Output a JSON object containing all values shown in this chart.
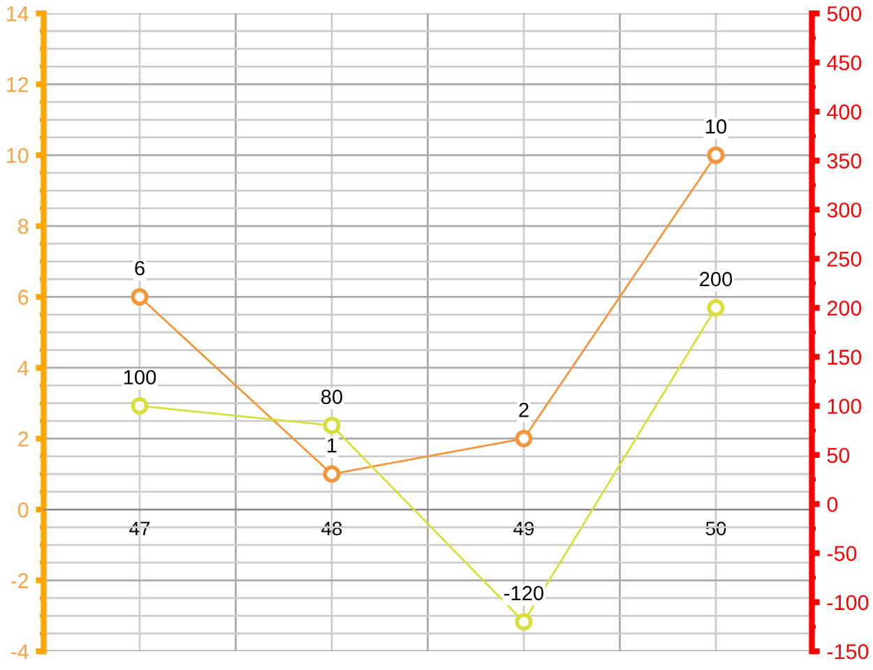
{
  "chart_data": {
    "type": "line",
    "categories": [
      "47",
      "48",
      "49",
      "50"
    ],
    "series": [
      {
        "color": "#f4953a",
        "values": [
          6,
          1,
          2,
          10
        ]
      },
      {
        "color": "#d8df3c",
        "values": [
          100,
          80,
          -120,
          200
        ],
        "axis": "y2"
      }
    ],
    "ylim": [
      -4,
      14
    ],
    "yticks": [
      -4,
      -2,
      0,
      2,
      4,
      6,
      8,
      10,
      12,
      14
    ],
    "y2lim": [
      -150,
      500
    ],
    "y2ticks": [
      -150,
      -100,
      -50,
      0,
      50,
      100,
      150,
      200,
      250,
      300,
      350,
      400,
      450,
      500
    ],
    "data_labels": true,
    "grid": true,
    "marker": "circle",
    "line_style": "solid",
    "legend": false
  }
}
